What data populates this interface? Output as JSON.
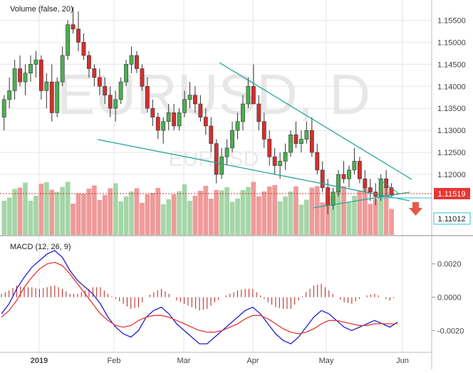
{
  "watermark": {
    "big": "EURUSD, D",
    "small": "EURUSD"
  },
  "indicators": {
    "volume_label": "Volume (false, 20)",
    "macd_label": "MACD (12, 26, 9)"
  },
  "colors": {
    "up": "#4caf50",
    "down": "#d32f2f",
    "vol_up": "#a5d6a7",
    "vol_down": "#ef9a9a",
    "trendline": "#26a69a",
    "macd": "#1f1fcc",
    "signal": "#e53935",
    "hist": "#b71c1c",
    "grid": "#e6e6e6",
    "price_tag": "#e53935",
    "tag2": "#26c6da",
    "arrow": "#e65a4a",
    "axis_text": "#444444"
  },
  "price_axis": {
    "ticks": [
      "1.15500",
      "1.15000",
      "1.14500",
      "1.14000",
      "1.13500",
      "1.13000",
      "1.12500",
      "1.12000"
    ],
    "current_price": "1.11519",
    "level_label": "1.11012"
  },
  "macd_axis": {
    "ticks": [
      "0.0020",
      "0.0000",
      "-0.0020"
    ]
  },
  "time_axis": {
    "ticks": [
      "2019",
      "Feb",
      "Mar",
      "Apr",
      "May",
      "Jun"
    ]
  },
  "chart_data": {
    "type": "candlestick",
    "symbol": "EURUSD",
    "timeframe": "D",
    "ylim": [
      1.1095,
      1.1583
    ],
    "x_range": [
      "2018-12-17",
      "2019-06-02"
    ],
    "candles_ohlc": [
      [
        1.133,
        1.138,
        1.13,
        1.137
      ],
      [
        1.137,
        1.142,
        1.135,
        1.139
      ],
      [
        1.139,
        1.146,
        1.137,
        1.144
      ],
      [
        1.144,
        1.147,
        1.14,
        1.141
      ],
      [
        1.141,
        1.145,
        1.138,
        1.143
      ],
      [
        1.143,
        1.147,
        1.141,
        1.145
      ],
      [
        1.145,
        1.148,
        1.142,
        1.146
      ],
      [
        1.146,
        1.147,
        1.137,
        1.139
      ],
      [
        1.139,
        1.143,
        1.135,
        1.141
      ],
      [
        1.141,
        1.145,
        1.132,
        1.134
      ],
      [
        1.134,
        1.142,
        1.133,
        1.141
      ],
      [
        1.141,
        1.149,
        1.14,
        1.147
      ],
      [
        1.147,
        1.155,
        1.146,
        1.154
      ],
      [
        1.154,
        1.158,
        1.152,
        1.153
      ],
      [
        1.153,
        1.157,
        1.148,
        1.15
      ],
      [
        1.15,
        1.152,
        1.146,
        1.147
      ],
      [
        1.147,
        1.148,
        1.142,
        1.144
      ],
      [
        1.144,
        1.145,
        1.14,
        1.142
      ],
      [
        1.142,
        1.144,
        1.138,
        1.14
      ],
      [
        1.14,
        1.142,
        1.136,
        1.138
      ],
      [
        1.138,
        1.14,
        1.133,
        1.135
      ],
      [
        1.135,
        1.139,
        1.132,
        1.137
      ],
      [
        1.137,
        1.142,
        1.136,
        1.141
      ],
      [
        1.141,
        1.146,
        1.14,
        1.145
      ],
      [
        1.145,
        1.149,
        1.143,
        1.147
      ],
      [
        1.147,
        1.148,
        1.143,
        1.144
      ],
      [
        1.144,
        1.145,
        1.139,
        1.14
      ],
      [
        1.14,
        1.142,
        1.134,
        1.135
      ],
      [
        1.135,
        1.137,
        1.131,
        1.133
      ],
      [
        1.133,
        1.134,
        1.128,
        1.13
      ],
      [
        1.13,
        1.133,
        1.127,
        1.132
      ],
      [
        1.132,
        1.136,
        1.13,
        1.134
      ],
      [
        1.134,
        1.136,
        1.13,
        1.131
      ],
      [
        1.131,
        1.135,
        1.13,
        1.134
      ],
      [
        1.134,
        1.139,
        1.133,
        1.137
      ],
      [
        1.137,
        1.141,
        1.135,
        1.138
      ],
      [
        1.138,
        1.14,
        1.134,
        1.136
      ],
      [
        1.136,
        1.138,
        1.132,
        1.133
      ],
      [
        1.133,
        1.135,
        1.129,
        1.131
      ],
      [
        1.131,
        1.133,
        1.125,
        1.127
      ],
      [
        1.127,
        1.128,
        1.118,
        1.12
      ],
      [
        1.12,
        1.126,
        1.119,
        1.124
      ],
      [
        1.124,
        1.128,
        1.122,
        1.126
      ],
      [
        1.126,
        1.132,
        1.125,
        1.13
      ],
      [
        1.13,
        1.134,
        1.128,
        1.132
      ],
      [
        1.132,
        1.138,
        1.13,
        1.136
      ],
      [
        1.136,
        1.142,
        1.135,
        1.14
      ],
      [
        1.14,
        1.145,
        1.138,
        1.136
      ],
      [
        1.136,
        1.138,
        1.13,
        1.132
      ],
      [
        1.132,
        1.134,
        1.126,
        1.128
      ],
      [
        1.128,
        1.13,
        1.122,
        1.124
      ],
      [
        1.124,
        1.126,
        1.12,
        1.122
      ],
      [
        1.122,
        1.125,
        1.119,
        1.123
      ],
      [
        1.123,
        1.127,
        1.121,
        1.125
      ],
      [
        1.125,
        1.13,
        1.124,
        1.129
      ],
      [
        1.129,
        1.132,
        1.126,
        1.127
      ],
      [
        1.127,
        1.13,
        1.125,
        1.128
      ],
      [
        1.128,
        1.132,
        1.127,
        1.13
      ],
      [
        1.13,
        1.133,
        1.124,
        1.125
      ],
      [
        1.125,
        1.127,
        1.12,
        1.121
      ],
      [
        1.121,
        1.123,
        1.116,
        1.117
      ],
      [
        1.117,
        1.119,
        1.111,
        1.113
      ],
      [
        1.113,
        1.117,
        1.112,
        1.116
      ],
      [
        1.116,
        1.121,
        1.115,
        1.12
      ],
      [
        1.12,
        1.123,
        1.118,
        1.119
      ],
      [
        1.119,
        1.122,
        1.117,
        1.121
      ],
      [
        1.121,
        1.126,
        1.12,
        1.123
      ],
      [
        1.123,
        1.124,
        1.118,
        1.119
      ],
      [
        1.119,
        1.121,
        1.116,
        1.117
      ],
      [
        1.117,
        1.119,
        1.114,
        1.116
      ],
      [
        1.116,
        1.118,
        1.113,
        1.115
      ],
      [
        1.115,
        1.12,
        1.114,
        1.119
      ],
      [
        1.119,
        1.121,
        1.115,
        1.117
      ],
      [
        1.117,
        1.118,
        1.115,
        1.1152
      ]
    ],
    "volume_note": "volume bars colored by candle direction",
    "macd": {
      "macd_line": [
        -0.001,
        -0.0004,
        0.0005,
        0.0012,
        0.0018,
        0.0022,
        0.0026,
        0.0028,
        0.0024,
        0.0016,
        0.001,
        0.0006,
        0.0002,
        -0.0004,
        -0.0012,
        -0.0018,
        -0.0022,
        -0.0024,
        -0.002,
        -0.0012,
        -0.0008,
        -0.0006,
        -0.001,
        -0.0016,
        -0.002,
        -0.0024,
        -0.0028,
        -0.0028,
        -0.0024,
        -0.002,
        -0.0016,
        -0.0012,
        -0.0008,
        -0.0006,
        -0.001,
        -0.0016,
        -0.0022,
        -0.0026,
        -0.0028,
        -0.0024,
        -0.0018,
        -0.0012,
        -0.0008,
        -0.001,
        -0.0014,
        -0.0018,
        -0.002,
        -0.0018,
        -0.0016,
        -0.0014,
        -0.0016,
        -0.0018,
        -0.0015
      ],
      "signal_line": [
        -0.0012,
        -0.0008,
        -0.0002,
        0.0006,
        0.0012,
        0.0017,
        0.002,
        0.0021,
        0.0019,
        0.0014,
        0.0008,
        0.0002,
        -0.0004,
        -0.001,
        -0.0014,
        -0.0017,
        -0.0018,
        -0.0017,
        -0.0014,
        -0.0012,
        -0.0011,
        -0.0011,
        -0.0012,
        -0.0014,
        -0.0016,
        -0.0018,
        -0.002,
        -0.0021,
        -0.0021,
        -0.002,
        -0.0018,
        -0.0016,
        -0.0013,
        -0.0011,
        -0.0011,
        -0.0013,
        -0.0016,
        -0.0019,
        -0.0021,
        -0.0022,
        -0.0021,
        -0.0019,
        -0.0016,
        -0.0014,
        -0.0014,
        -0.0015,
        -0.0016,
        -0.0017,
        -0.0017,
        -0.0016,
        -0.0016,
        -0.0016,
        -0.0016
      ],
      "ylim": [
        -0.0031,
        0.0031
      ]
    }
  }
}
